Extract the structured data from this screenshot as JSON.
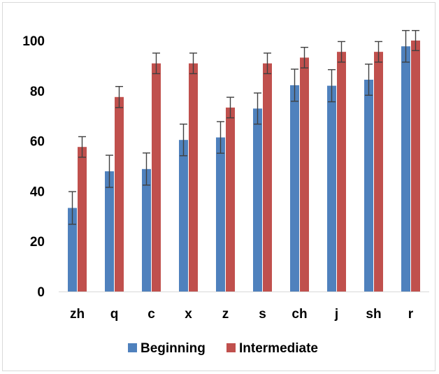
{
  "chart_data": {
    "type": "bar",
    "title": "",
    "xlabel": "",
    "ylabel": "",
    "ylim": [
      0,
      100
    ],
    "yticks": [
      0,
      20,
      40,
      60,
      80,
      100
    ],
    "grid": false,
    "legend_position": "bottom",
    "categories": [
      "zh",
      "q",
      "c",
      "x",
      "z",
      "s",
      "ch",
      "j",
      "sh",
      "r"
    ],
    "series": [
      {
        "name": "Beginning",
        "color": "#4f81bd",
        "values": [
          33.3,
          47.9,
          48.8,
          60.4,
          61.4,
          72.9,
          82.2,
          82.0,
          84.4,
          97.7
        ],
        "error": [
          6.5,
          6.4,
          6.4,
          6.3,
          6.3,
          6.2,
          6.4,
          6.4,
          6.2,
          6.3
        ]
      },
      {
        "name": "Intermediate",
        "color": "#c0504d",
        "values": [
          57.6,
          77.5,
          90.9,
          90.9,
          73.3,
          90.9,
          93.2,
          95.5,
          95.5,
          100
        ],
        "error": [
          4.1,
          4.2,
          4.1,
          4.1,
          4.1,
          4.1,
          4.1,
          4.1,
          4.1,
          4.0
        ]
      }
    ]
  }
}
